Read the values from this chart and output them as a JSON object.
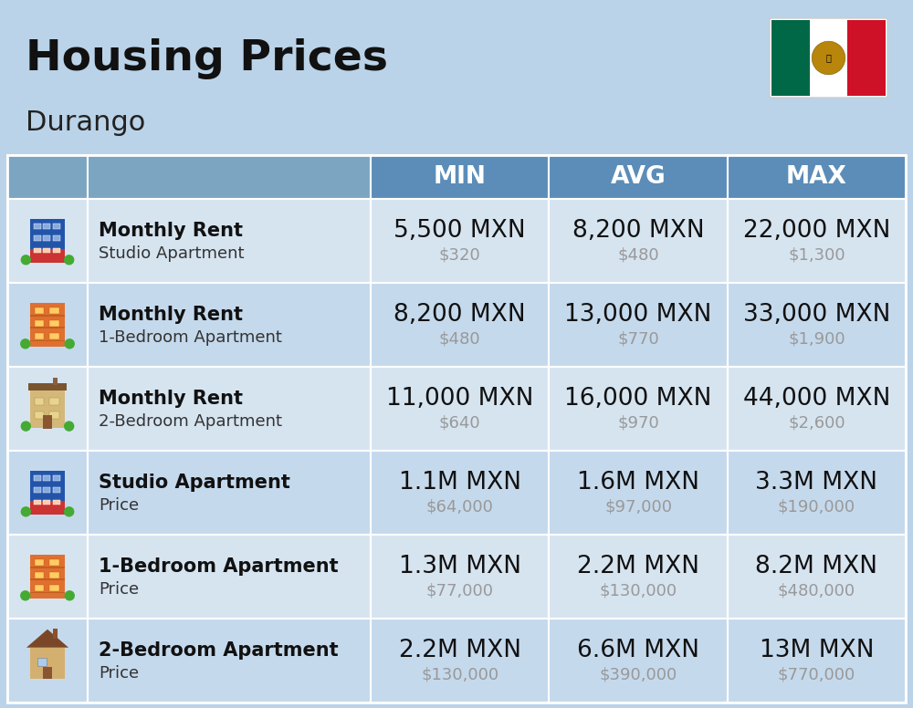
{
  "title": "Housing Prices",
  "subtitle": "Durango",
  "background_color": "#bad3e8",
  "header_bg_color": "#5b8db8",
  "header_text_color": "#ffffff",
  "row_bg_color_light": "#d6e4f0",
  "row_bg_color_dark": "#c5d9ec",
  "col_headers": [
    "MIN",
    "AVG",
    "MAX"
  ],
  "rows": [
    {
      "bold_text": "Monthly Rent",
      "light_text": "Studio Apartment",
      "min_main": "5,500 MXN",
      "min_sub": "$320",
      "avg_main": "8,200 MXN",
      "avg_sub": "$480",
      "max_main": "22,000 MXN",
      "max_sub": "$1,300",
      "icon_type": "blue_building"
    },
    {
      "bold_text": "Monthly Rent",
      "light_text": "1-Bedroom Apartment",
      "min_main": "8,200 MXN",
      "min_sub": "$480",
      "avg_main": "13,000 MXN",
      "avg_sub": "$770",
      "max_main": "33,000 MXN",
      "max_sub": "$1,900",
      "icon_type": "orange_building"
    },
    {
      "bold_text": "Monthly Rent",
      "light_text": "2-Bedroom Apartment",
      "min_main": "11,000 MXN",
      "min_sub": "$640",
      "avg_main": "16,000 MXN",
      "avg_sub": "$970",
      "max_main": "44,000 MXN",
      "max_sub": "$2,600",
      "icon_type": "beige_building"
    },
    {
      "bold_text": "Studio Apartment",
      "light_text": "Price",
      "min_main": "1.1M MXN",
      "min_sub": "$64,000",
      "avg_main": "1.6M MXN",
      "avg_sub": "$97,000",
      "max_main": "3.3M MXN",
      "max_sub": "$190,000",
      "icon_type": "blue_building"
    },
    {
      "bold_text": "1-Bedroom Apartment",
      "light_text": "Price",
      "min_main": "1.3M MXN",
      "min_sub": "$77,000",
      "avg_main": "2.2M MXN",
      "avg_sub": "$130,000",
      "max_main": "8.2M MXN",
      "max_sub": "$480,000",
      "icon_type": "orange_building"
    },
    {
      "bold_text": "2-Bedroom Apartment",
      "light_text": "Price",
      "min_main": "2.2M MXN",
      "min_sub": "$130,000",
      "avg_main": "6.6M MXN",
      "avg_sub": "$390,000",
      "max_main": "13M MXN",
      "max_sub": "$770,000",
      "icon_type": "house_building"
    }
  ],
  "title_fontsize": 34,
  "subtitle_fontsize": 22,
  "header_fontsize": 19,
  "main_fontsize": 19,
  "sub_fontsize": 13,
  "label_bold_fontsize": 15,
  "label_light_fontsize": 13
}
